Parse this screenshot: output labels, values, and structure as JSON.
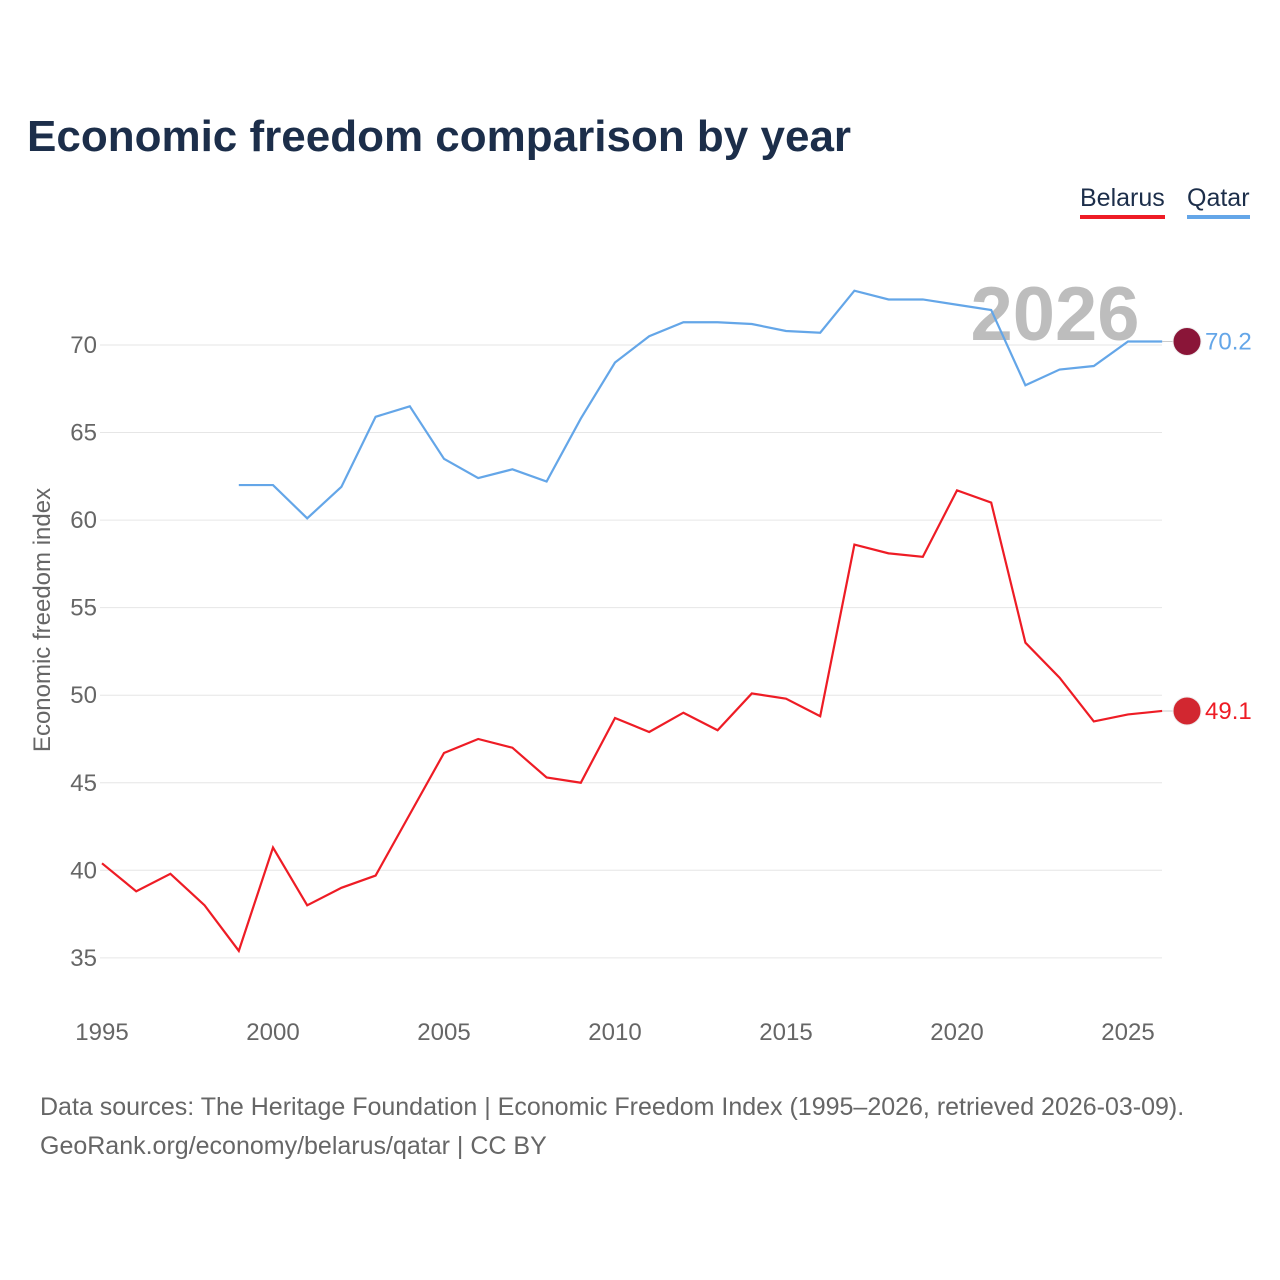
{
  "title": "Economic freedom comparison by year",
  "legend": [
    "Belarus",
    "Qatar"
  ],
  "footer": {
    "line1": "Data sources: The Heritage Foundation | Economic Freedom Index (1995–2026, retrieved 2026-03-09).",
    "line2": "GeoRank.org/economy/belarus/qatar | CC BY"
  },
  "chart_data": {
    "type": "line",
    "title": "Economic freedom comparison by year",
    "xlabel": "",
    "ylabel": "Economic freedom index",
    "xlim": [
      1995,
      2026
    ],
    "ylim": [
      33,
      74
    ],
    "xticks": [
      1995,
      2000,
      2005,
      2010,
      2015,
      2020,
      2025
    ],
    "yticks": [
      35,
      40,
      45,
      50,
      55,
      60,
      65,
      70
    ],
    "watermark": "2026",
    "grid": true,
    "legend_position": "top-right",
    "series": [
      {
        "name": "Belarus",
        "color": "#ee1c25",
        "end_label": "49.1",
        "x": [
          1995,
          1996,
          1997,
          1998,
          1999,
          2000,
          2001,
          2002,
          2003,
          2004,
          2005,
          2006,
          2007,
          2008,
          2009,
          2010,
          2011,
          2012,
          2013,
          2014,
          2015,
          2016,
          2017,
          2018,
          2019,
          2020,
          2021,
          2022,
          2023,
          2024,
          2025,
          2026
        ],
        "values": [
          40.4,
          38.8,
          39.8,
          38.0,
          35.4,
          41.3,
          38.0,
          39.0,
          39.7,
          43.2,
          46.7,
          47.5,
          47.0,
          45.3,
          45.0,
          48.7,
          47.9,
          49.0,
          48.0,
          50.1,
          49.8,
          48.8,
          58.6,
          58.1,
          57.9,
          61.7,
          61.0,
          53.0,
          51.0,
          48.5,
          48.9,
          49.1
        ]
      },
      {
        "name": "Qatar",
        "color": "#64a6e8",
        "end_label": "70.2",
        "x": [
          1999,
          2000,
          2001,
          2002,
          2003,
          2004,
          2005,
          2006,
          2007,
          2008,
          2009,
          2010,
          2011,
          2012,
          2013,
          2014,
          2015,
          2016,
          2017,
          2018,
          2019,
          2020,
          2021,
          2022,
          2023,
          2024,
          2025,
          2026
        ],
        "values": [
          62.0,
          62.0,
          60.1,
          61.9,
          65.9,
          66.5,
          63.5,
          62.4,
          62.9,
          62.2,
          65.8,
          69.0,
          70.5,
          71.3,
          71.3,
          71.2,
          70.8,
          70.7,
          73.1,
          72.6,
          72.6,
          72.3,
          72.0,
          67.7,
          68.6,
          68.8,
          70.2,
          70.2
        ]
      }
    ]
  }
}
